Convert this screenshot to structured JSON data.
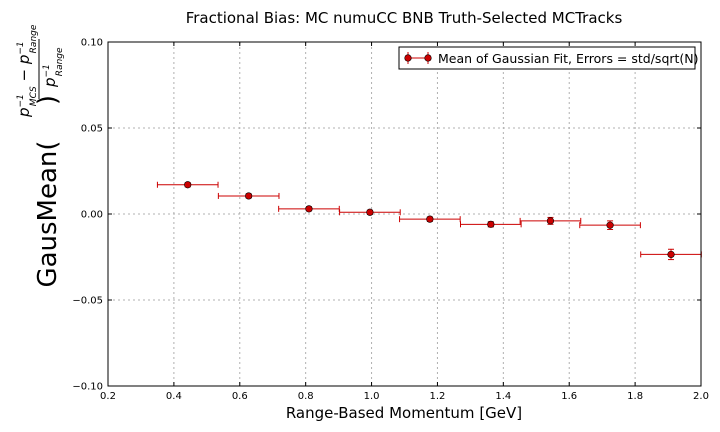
{
  "chart_data": {
    "type": "scatter",
    "title": "Fractional Bias: MC numuCC BNB Truth-Selected MCTracks",
    "xlabel": "Range-Based Momentum [GeV]",
    "ylabel_prefix": "GausMean(",
    "ylabel_suffix": ")",
    "ylabel_num_a": "p",
    "ylabel_num_a_sup": "−1",
    "ylabel_num_a_sub": "MCS",
    "ylabel_num_minus": " − ",
    "ylabel_num_b": "p",
    "ylabel_num_b_sup": "−1",
    "ylabel_num_b_sub": "Range",
    "ylabel_den": "p",
    "ylabel_den_sup": "−1",
    "ylabel_den_sub": "Range",
    "xlim": [
      0.2,
      2.0
    ],
    "ylim": [
      -0.1,
      0.1
    ],
    "xticks": [
      0.2,
      0.4,
      0.6,
      0.8,
      1.0,
      1.2,
      1.4,
      1.6,
      1.8,
      2.0
    ],
    "xtick_labels": [
      "0.2",
      "0.4",
      "0.6",
      "0.8",
      "1.0",
      "1.2",
      "1.4",
      "1.6",
      "1.8",
      "2.0"
    ],
    "yticks": [
      -0.1,
      -0.05,
      0.0,
      0.05,
      0.1
    ],
    "ytick_labels": [
      "−0.10",
      "−0.05",
      "0.00",
      "0.05",
      "0.10"
    ],
    "grid": true,
    "legend_position": "top-right",
    "series": [
      {
        "name": "Mean of Gaussian Fit, Errors = std/sqrt(N)",
        "color": "#cc0000",
        "x": [
          0.442,
          0.627,
          0.81,
          0.995,
          1.177,
          1.362,
          1.543,
          1.724,
          1.909
        ],
        "xerr": [
          0.092,
          0.092,
          0.092,
          0.092,
          0.092,
          0.092,
          0.092,
          0.092,
          0.092
        ],
        "y": [
          0.017,
          0.0105,
          0.003,
          0.001,
          -0.003,
          -0.006,
          -0.004,
          -0.0065,
          -0.0235
        ],
        "yerr": [
          0.0012,
          0.0012,
          0.0012,
          0.0012,
          0.0013,
          0.0015,
          0.002,
          0.0025,
          0.003
        ]
      }
    ]
  }
}
